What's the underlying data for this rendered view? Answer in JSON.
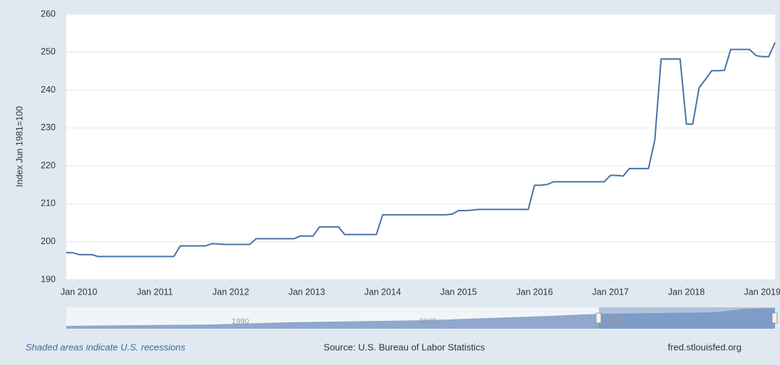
{
  "chart_data": {
    "type": "line",
    "y_label": "Index Jun 1981=100",
    "x": [
      "2009-11",
      "2009-12",
      "2010-01",
      "2010-02",
      "2010-03",
      "2010-04",
      "2010-05",
      "2010-06",
      "2010-07",
      "2010-08",
      "2010-09",
      "2010-10",
      "2010-11",
      "2010-12",
      "2011-01",
      "2011-02",
      "2011-03",
      "2011-04",
      "2011-05",
      "2011-06",
      "2011-07",
      "2011-08",
      "2011-09",
      "2011-10",
      "2011-11",
      "2011-12",
      "2012-01",
      "2012-02",
      "2012-03",
      "2012-04",
      "2012-05",
      "2012-06",
      "2012-07",
      "2012-08",
      "2012-09",
      "2012-10",
      "2012-11",
      "2012-12",
      "2013-01",
      "2013-02",
      "2013-03",
      "2013-04",
      "2013-05",
      "2013-06",
      "2013-07",
      "2013-08",
      "2013-09",
      "2013-10",
      "2013-11",
      "2013-12",
      "2014-01",
      "2014-02",
      "2014-03",
      "2014-04",
      "2014-05",
      "2014-06",
      "2014-07",
      "2014-08",
      "2014-09",
      "2014-10",
      "2014-11",
      "2014-12",
      "2015-01",
      "2015-02",
      "2015-03",
      "2015-04",
      "2015-05",
      "2015-06",
      "2015-07",
      "2015-08",
      "2015-09",
      "2015-10",
      "2015-11",
      "2015-12",
      "2016-01",
      "2016-02",
      "2016-03",
      "2016-04",
      "2016-05",
      "2016-06",
      "2016-07",
      "2016-08",
      "2016-09",
      "2016-10",
      "2016-11",
      "2016-12",
      "2017-01",
      "2017-02",
      "2017-03",
      "2017-04",
      "2017-05",
      "2017-06",
      "2017-07",
      "2017-08",
      "2017-09",
      "2017-10",
      "2017-11",
      "2017-12",
      "2018-01",
      "2018-02",
      "2018-03",
      "2018-04",
      "2018-05",
      "2018-06",
      "2018-07",
      "2018-08",
      "2018-09",
      "2018-10",
      "2018-11",
      "2018-12",
      "2019-01",
      "2019-02",
      "2019-03"
    ],
    "series": [
      {
        "color": "#4572a7",
        "values": [
          197.1,
          197.1,
          196.6,
          196.6,
          196.6,
          196.1,
          196.1,
          196.1,
          196.1,
          196.1,
          196.1,
          196.1,
          196.1,
          196.1,
          196.1,
          196.1,
          196.1,
          196.1,
          198.9,
          198.9,
          198.9,
          198.9,
          198.9,
          199.5,
          199.4,
          199.3,
          199.3,
          199.3,
          199.3,
          199.3,
          200.8,
          200.8,
          200.8,
          200.8,
          200.8,
          200.8,
          200.8,
          201.5,
          201.5,
          201.5,
          203.9,
          203.9,
          203.9,
          203.9,
          201.9,
          201.9,
          201.9,
          201.9,
          201.9,
          201.9,
          207.1,
          207.1,
          207.1,
          207.1,
          207.1,
          207.1,
          207.1,
          207.1,
          207.1,
          207.1,
          207.1,
          207.3,
          208.2,
          208.2,
          208.3,
          208.5,
          208.5,
          208.5,
          208.5,
          208.5,
          208.5,
          208.5,
          208.5,
          208.5,
          214.9,
          214.9,
          215.1,
          215.8,
          215.8,
          215.8,
          215.8,
          215.8,
          215.8,
          215.8,
          215.8,
          215.8,
          217.5,
          217.5,
          217.3,
          219.3,
          219.3,
          219.3,
          219.3,
          226.8,
          248.2,
          248.2,
          248.2,
          248.2,
          231.0,
          231.0,
          240.6,
          242.8,
          245.1,
          245.1,
          245.2,
          250.7,
          250.7,
          250.7,
          250.7,
          249.1,
          248.8,
          248.8,
          252.5
        ]
      }
    ],
    "xlim": [
      "2009-11",
      "2019-03"
    ],
    "xticks": [
      {
        "value": "2010-01",
        "label": "Jan 2010"
      },
      {
        "value": "2011-01",
        "label": "Jan 2011"
      },
      {
        "value": "2012-01",
        "label": "Jan 2012"
      },
      {
        "value": "2013-01",
        "label": "Jan 2013"
      },
      {
        "value": "2014-01",
        "label": "Jan 2014"
      },
      {
        "value": "2015-01",
        "label": "Jan 2015"
      },
      {
        "value": "2016-01",
        "label": "Jan 2016"
      },
      {
        "value": "2017-01",
        "label": "Jan 2017"
      },
      {
        "value": "2018-01",
        "label": "Jan 2018"
      },
      {
        "value": "2019-01",
        "label": "Jan 2019"
      }
    ],
    "ylim": [
      190,
      260
    ],
    "yticks": [
      190,
      200,
      210,
      220,
      230,
      240,
      250,
      260
    ],
    "grid": true,
    "navigator_labels": [
      "1990",
      "2000",
      "2010"
    ],
    "note": "Shaded areas indicate U.S. recessions",
    "source": "Source: U.S. Bureau of Labor Statistics",
    "site": "fred.stlouisfed.org"
  }
}
